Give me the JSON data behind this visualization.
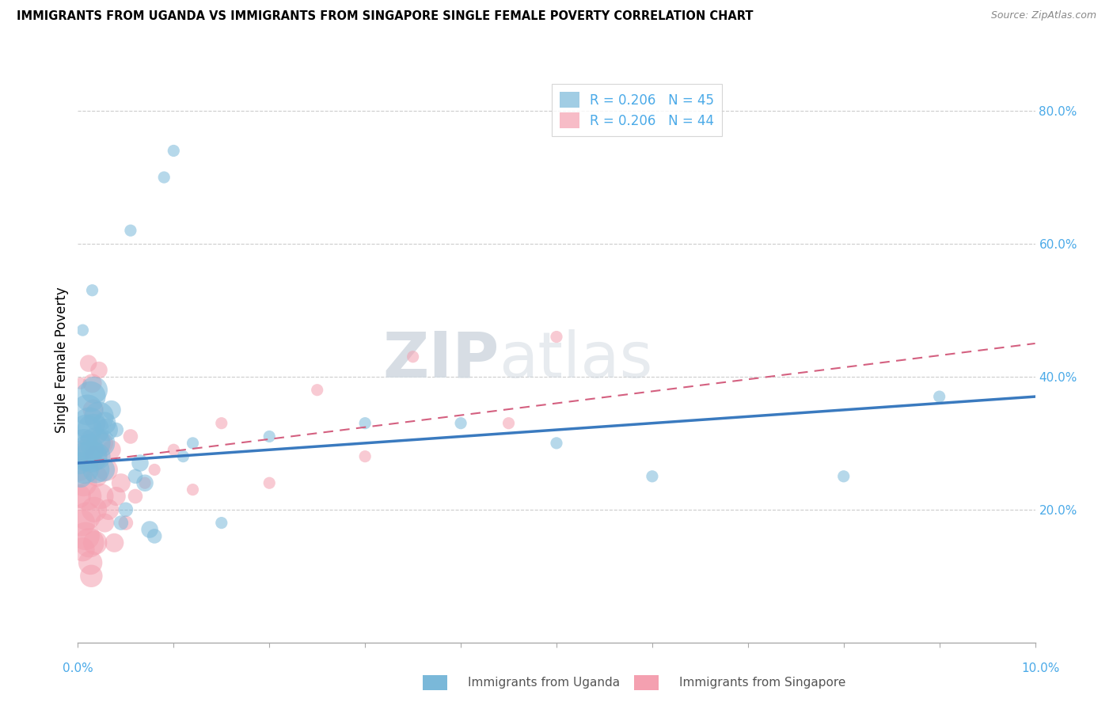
{
  "title": "IMMIGRANTS FROM UGANDA VS IMMIGRANTS FROM SINGAPORE SINGLE FEMALE POVERTY CORRELATION CHART",
  "source": "Source: ZipAtlas.com",
  "ylabel": "Single Female Poverty",
  "color_uganda": "#7ab8d9",
  "color_singapore": "#f4a0b0",
  "color_uganda_line": "#3a7abf",
  "color_singapore_line": "#d46080",
  "color_ytick": "#4baae8",
  "watermark_zip": "ZIP",
  "watermark_atlas": "atlas",
  "legend_label1": "R = 0.206   N = 45",
  "legend_label2": "R = 0.206   N = 44",
  "xlim": [
    0.0,
    10.0
  ],
  "ylim": [
    0.0,
    85.0
  ],
  "uganda_x": [
    0.02,
    0.03,
    0.05,
    0.06,
    0.07,
    0.08,
    0.09,
    0.1,
    0.11,
    0.12,
    0.13,
    0.14,
    0.15,
    0.16,
    0.17,
    0.18,
    0.19,
    0.2,
    0.22,
    0.24,
    0.26,
    0.28,
    0.3,
    0.35,
    0.4,
    0.45,
    0.5,
    0.55,
    0.6,
    0.65,
    0.7,
    0.75,
    0.8,
    0.9,
    1.0,
    1.1,
    1.2,
    1.5,
    2.0,
    3.0,
    4.0,
    5.0,
    6.0,
    8.0,
    9.0
  ],
  "uganda_y": [
    27.0,
    25.0,
    47.0,
    30.0,
    26.0,
    28.0,
    32.0,
    35.0,
    29.0,
    33.0,
    37.0,
    28.0,
    53.0,
    32.0,
    38.0,
    30.0,
    26.0,
    28.0,
    34.0,
    30.0,
    26.0,
    33.0,
    32.0,
    35.0,
    32.0,
    18.0,
    20.0,
    62.0,
    25.0,
    27.0,
    24.0,
    17.0,
    16.0,
    70.0,
    74.0,
    28.0,
    30.0,
    18.0,
    31.0,
    33.0,
    33.0,
    30.0,
    25.0,
    25.0,
    37.0
  ],
  "singapore_x": [
    0.01,
    0.02,
    0.03,
    0.04,
    0.05,
    0.06,
    0.07,
    0.08,
    0.09,
    0.1,
    0.11,
    0.12,
    0.13,
    0.14,
    0.15,
    0.16,
    0.17,
    0.18,
    0.19,
    0.2,
    0.22,
    0.24,
    0.26,
    0.28,
    0.3,
    0.32,
    0.35,
    0.38,
    0.4,
    0.45,
    0.5,
    0.55,
    0.6,
    0.7,
    0.8,
    1.0,
    1.2,
    1.5,
    2.0,
    2.5,
    3.0,
    3.5,
    4.5,
    5.0
  ],
  "singapore_y": [
    22.0,
    26.0,
    39.0,
    18.0,
    14.0,
    24.0,
    29.0,
    16.0,
    19.0,
    22.0,
    42.0,
    15.0,
    12.0,
    10.0,
    39.0,
    35.0,
    20.0,
    15.0,
    28.0,
    25.0,
    41.0,
    22.0,
    30.0,
    18.0,
    26.0,
    20.0,
    29.0,
    15.0,
    22.0,
    24.0,
    18.0,
    31.0,
    22.0,
    24.0,
    26.0,
    29.0,
    23.0,
    33.0,
    24.0,
    38.0,
    28.0,
    43.0,
    33.0,
    46.0
  ],
  "uganda_trend": [
    27.0,
    37.0
  ],
  "singapore_trend": [
    27.0,
    45.0
  ]
}
